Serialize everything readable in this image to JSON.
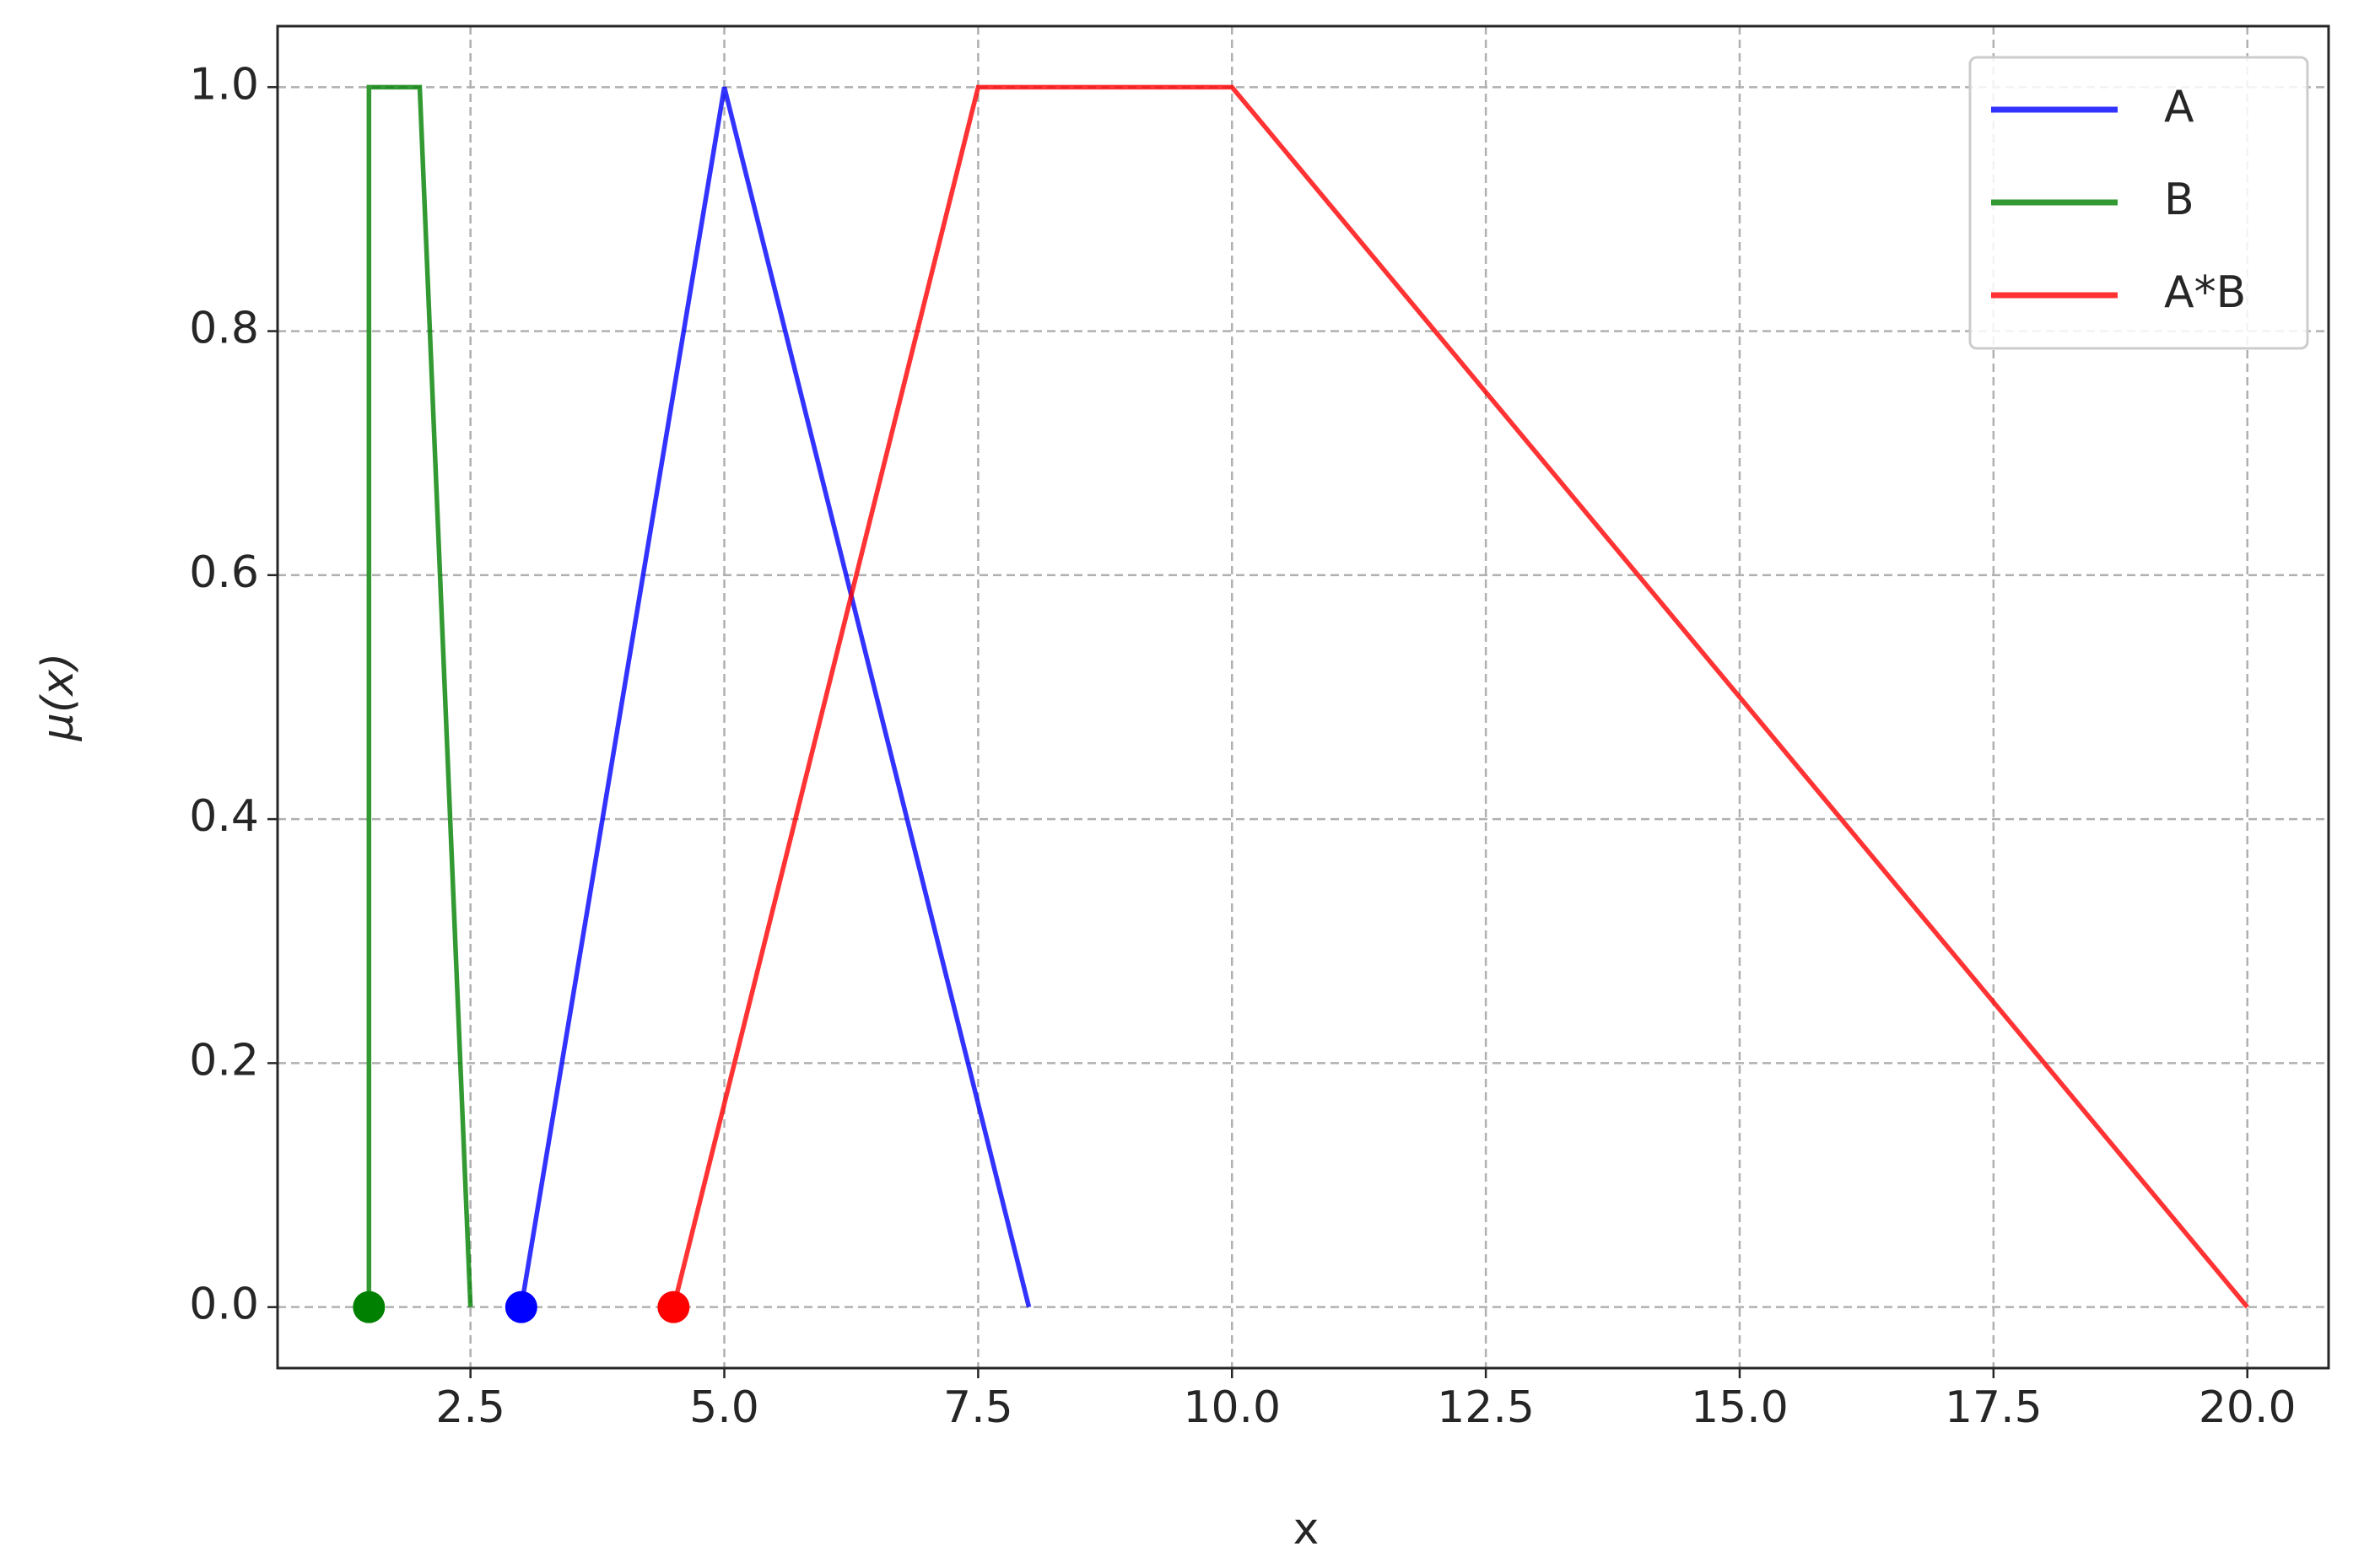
{
  "chart_data": {
    "type": "line",
    "xlabel": "x",
    "ylabel": "μ(x)",
    "xlim": [
      0.6,
      20.8
    ],
    "ylim": [
      -0.05,
      1.05
    ],
    "xticks": [
      2.5,
      {
        "value": 5,
        "label": "5.0"
      },
      7.5,
      {
        "value": 10,
        "label": "10.0"
      },
      12.5,
      {
        "value": 15,
        "label": "15.0"
      },
      17.5,
      {
        "value": 20,
        "label": "20.0"
      }
    ],
    "yticks": [
      {
        "value": 0,
        "label": "0.0"
      },
      0.2,
      0.4,
      0.6,
      0.8,
      {
        "value": 1,
        "label": "1.0"
      }
    ],
    "grid": true,
    "legend": "upper right",
    "markevery": [
      0
    ],
    "series": [
      {
        "name": "A",
        "color": "#0000ff",
        "x": [
          3,
          5,
          8
        ],
        "values": [
          0,
          1,
          0
        ]
      },
      {
        "name": "B",
        "color": "#008000",
        "x": [
          1.5,
          1.5,
          2,
          2.5
        ],
        "values": [
          0,
          1,
          1,
          0
        ]
      },
      {
        "name": "A*B",
        "color": "#ff0000",
        "x": [
          4.5,
          7.5,
          10,
          20
        ],
        "values": [
          0,
          1,
          1,
          0
        ]
      }
    ]
  }
}
